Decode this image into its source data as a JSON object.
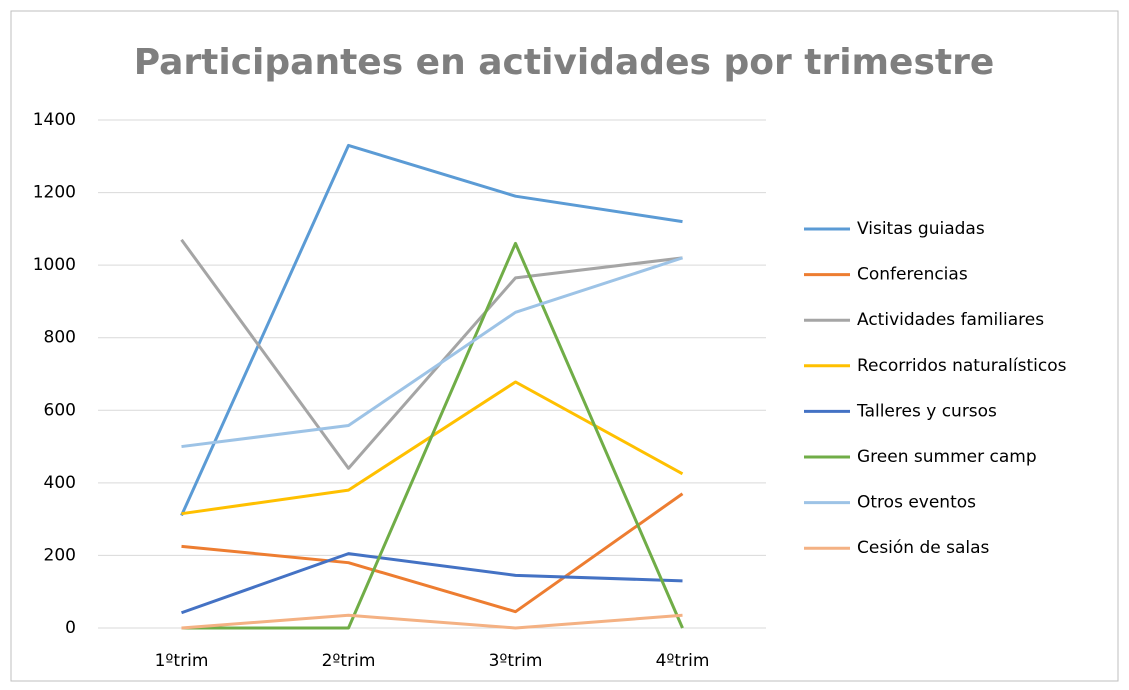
{
  "chart_data": {
    "type": "line",
    "title": "Participantes en actividades por trimestre",
    "categories": [
      "1ºtrim",
      "2ºtrim",
      "3ºtrim",
      "4ºtrim"
    ],
    "series": [
      {
        "name": "Visitas guiadas",
        "color": "#5b9bd5",
        "values": [
          310,
          1330,
          1190,
          1120
        ]
      },
      {
        "name": "Conferencias",
        "color": "#ed7d31",
        "values": [
          225,
          180,
          45,
          370
        ]
      },
      {
        "name": "Actividades familiares",
        "color": "#a5a5a5",
        "values": [
          1070,
          440,
          965,
          1020
        ]
      },
      {
        "name": "Recorridos naturalísticos",
        "color": "#ffc000",
        "values": [
          315,
          380,
          678,
          425
        ]
      },
      {
        "name": "Talleres y cursos",
        "color": "#4472c4",
        "values": [
          42,
          205,
          145,
          130
        ]
      },
      {
        "name": "Green summer camp",
        "color": "#70ad47",
        "values": [
          0,
          0,
          1060,
          0
        ]
      },
      {
        "name": "Otros eventos",
        "color": "#9dc3e6",
        "values": [
          500,
          558,
          870,
          1020
        ]
      },
      {
        "name": "Cesión de salas",
        "color": "#f4b183",
        "values": [
          0,
          35,
          0,
          35
        ]
      }
    ],
    "ylim": [
      0,
      1400
    ],
    "yticks": [
      0,
      200,
      400,
      600,
      800,
      1000,
      1200,
      1400
    ],
    "grid": true,
    "legend": "right"
  }
}
